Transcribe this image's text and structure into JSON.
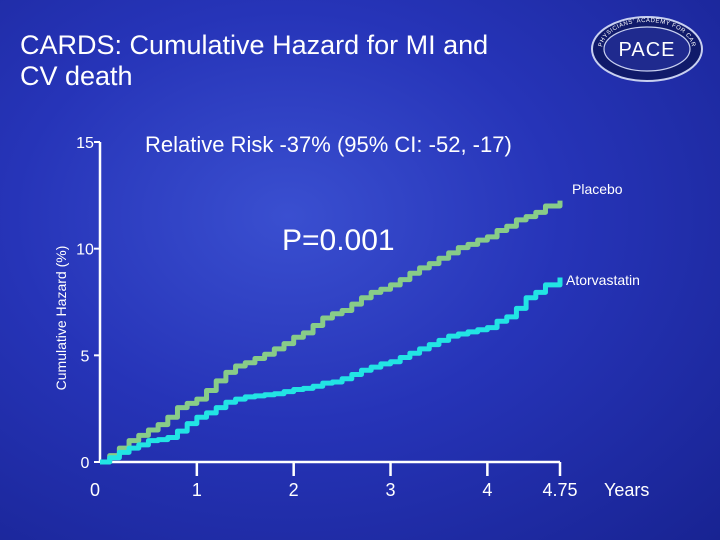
{
  "slide": {
    "title_line1": "CARDS: Cumulative Hazard for MI and",
    "title_line2": "CV death"
  },
  "logo": {
    "text": "PACE",
    "ring_text": "PHYSICIANS' ACADEMY FOR CARDIOVASCULAR EDUCATION"
  },
  "chart_data": {
    "type": "line",
    "title": "Relative Risk -37%  (95% CI: -52, -17)",
    "annotation": "P=0.001",
    "xlabel": "Years",
    "ylabel": "Cumulative Hazard (%)",
    "ylim": [
      0,
      15
    ],
    "xlim": [
      0,
      4.75
    ],
    "y_ticks": [
      {
        "value": 0,
        "label": "0"
      },
      {
        "value": 5,
        "label": "5"
      },
      {
        "value": 10,
        "label": "10"
      },
      {
        "value": 15,
        "label": "15"
      }
    ],
    "x_ticks": [
      {
        "value": 0,
        "label": "0"
      },
      {
        "value": 1,
        "label": "1"
      },
      {
        "value": 2,
        "label": "2"
      },
      {
        "value": 3,
        "label": "3"
      },
      {
        "value": 4,
        "label": "4"
      },
      {
        "value": 4.75,
        "label": "4.75"
      }
    ],
    "series": [
      {
        "name": "Placebo",
        "color": "#88cc88",
        "x": [
          0,
          0.1,
          0.2,
          0.3,
          0.4,
          0.5,
          0.6,
          0.7,
          0.8,
          0.9,
          1.0,
          1.1,
          1.2,
          1.3,
          1.4,
          1.5,
          1.6,
          1.7,
          1.8,
          1.9,
          2.0,
          2.1,
          2.2,
          2.3,
          2.4,
          2.5,
          2.6,
          2.7,
          2.8,
          2.9,
          3.0,
          3.1,
          3.2,
          3.3,
          3.4,
          3.5,
          3.6,
          3.7,
          3.8,
          3.9,
          4.0,
          4.1,
          4.2,
          4.3,
          4.4,
          4.5,
          4.6,
          4.75
        ],
        "values": [
          0.0,
          0.3,
          0.65,
          1.0,
          1.25,
          1.5,
          1.75,
          2.1,
          2.55,
          2.75,
          2.95,
          3.35,
          3.8,
          4.2,
          4.5,
          4.65,
          4.85,
          5.05,
          5.3,
          5.55,
          5.85,
          6.05,
          6.4,
          6.75,
          6.95,
          7.1,
          7.4,
          7.7,
          7.95,
          8.1,
          8.3,
          8.55,
          8.85,
          9.1,
          9.3,
          9.55,
          9.8,
          10.05,
          10.2,
          10.4,
          10.55,
          10.85,
          11.05,
          11.35,
          11.5,
          11.7,
          12.0,
          12.25
        ]
      },
      {
        "name": "Atorvastatin",
        "color": "#22e4e4",
        "x": [
          0,
          0.1,
          0.2,
          0.3,
          0.4,
          0.5,
          0.6,
          0.7,
          0.8,
          0.9,
          1.0,
          1.1,
          1.2,
          1.3,
          1.4,
          1.5,
          1.6,
          1.7,
          1.8,
          1.9,
          2.0,
          2.1,
          2.2,
          2.3,
          2.4,
          2.5,
          2.6,
          2.7,
          2.8,
          2.9,
          3.0,
          3.1,
          3.2,
          3.3,
          3.4,
          3.5,
          3.6,
          3.7,
          3.8,
          3.9,
          4.0,
          4.1,
          4.2,
          4.3,
          4.4,
          4.5,
          4.6,
          4.75
        ],
        "values": [
          0.0,
          0.2,
          0.45,
          0.65,
          0.8,
          1.0,
          1.05,
          1.15,
          1.45,
          1.8,
          2.1,
          2.3,
          2.55,
          2.8,
          2.95,
          3.05,
          3.1,
          3.15,
          3.2,
          3.3,
          3.4,
          3.45,
          3.55,
          3.7,
          3.75,
          3.9,
          4.1,
          4.3,
          4.45,
          4.6,
          4.7,
          4.9,
          5.1,
          5.3,
          5.5,
          5.7,
          5.9,
          6.0,
          6.1,
          6.2,
          6.3,
          6.6,
          6.8,
          7.2,
          7.7,
          7.95,
          8.3,
          8.65
        ]
      }
    ]
  }
}
